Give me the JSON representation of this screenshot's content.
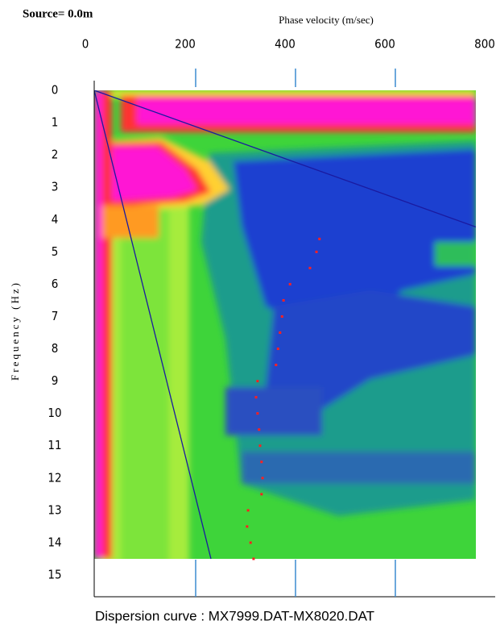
{
  "chart_data": {
    "type": "scatter",
    "annotations": [
      "Source= 0.0m",
      "Dispersion curve : MX7999.DAT-MX8020.DAT"
    ],
    "xlabel": "Phase velocity (m/sec)",
    "ylabel": "Frequency (Hz)",
    "x": [
      448,
      442,
      429,
      389,
      376,
      373,
      369,
      365,
      361,
      324,
      321,
      324,
      327,
      329,
      332,
      334,
      332,
      305,
      303,
      310,
      316
    ],
    "values": [
      4.6,
      5.0,
      5.5,
      6.0,
      6.5,
      7.0,
      7.5,
      8.0,
      8.5,
      9.0,
      9.5,
      10.0,
      10.5,
      11.0,
      11.5,
      12.0,
      12.5,
      13.0,
      13.5,
      14.0,
      14.5
    ],
    "color": "#ff2020",
    "xlim": [
      0,
      800
    ],
    "xticks": [
      0,
      200,
      400,
      600,
      800
    ],
    "ylim": [
      0,
      15
    ],
    "yticks": [
      0,
      1,
      2,
      3,
      4,
      5,
      6,
      7,
      8,
      9,
      10,
      11,
      12,
      13,
      14,
      15
    ],
    "x_axis_position": "top",
    "y_inverted": true,
    "tick_color": "#3a8ad0"
  }
}
